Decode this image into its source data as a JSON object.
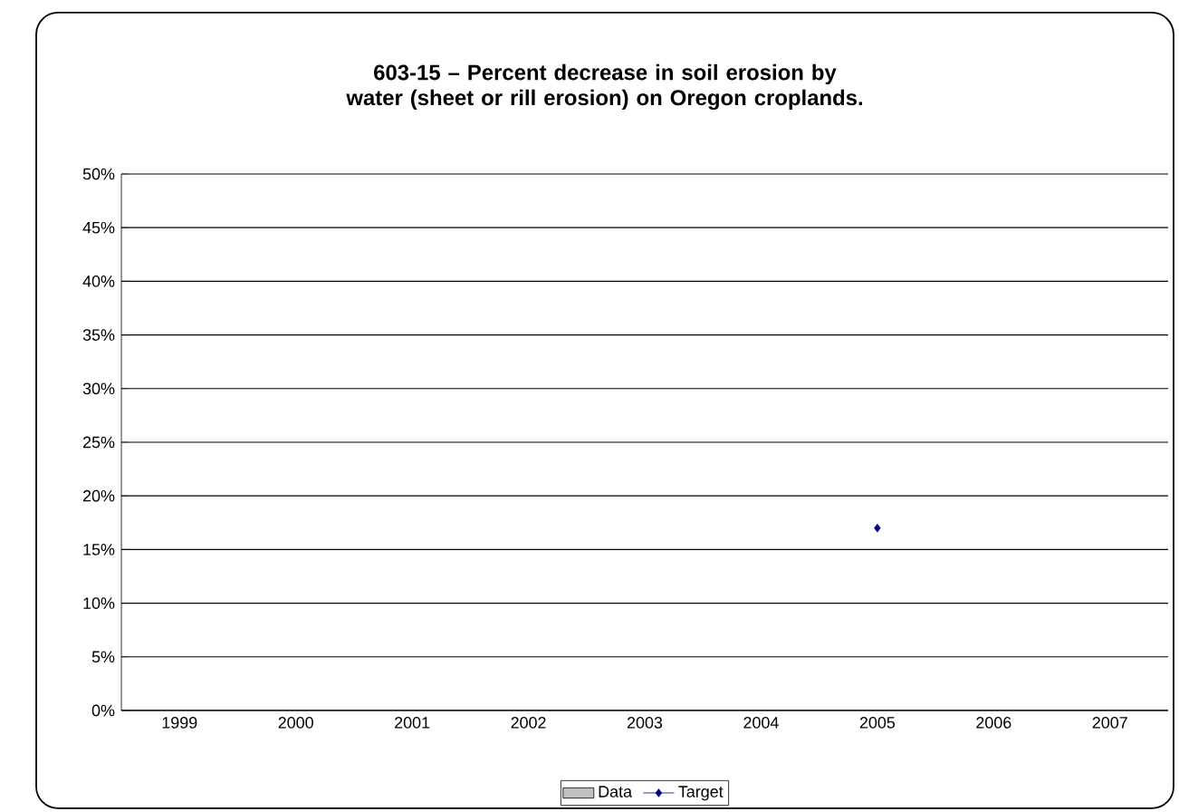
{
  "chart_data": {
    "type": "bar",
    "title": "603-15 – Percent decrease in soil erosion by water (sheet or rill erosion) on Oregon croplands.",
    "categories": [
      "1999",
      "2000",
      "2001",
      "2002",
      "2003",
      "2004",
      "2005",
      "2006",
      "2007"
    ],
    "series": [
      {
        "name": "Data",
        "color": "#c0c0c0",
        "values": [
          null,
          null,
          null,
          null,
          null,
          null,
          null,
          null,
          null
        ]
      },
      {
        "name": "Target",
        "type": "line",
        "color": "#000080",
        "marker": "diamond",
        "values": [
          null,
          null,
          null,
          null,
          null,
          null,
          17,
          null,
          null
        ]
      }
    ],
    "ylim": [
      0,
      50
    ],
    "yticks": [
      {
        "value": 0,
        "label": "0%"
      },
      {
        "value": 5,
        "label": "5%"
      },
      {
        "value": 10,
        "label": "10%"
      },
      {
        "value": 15,
        "label": "15%"
      },
      {
        "value": 20,
        "label": "20%"
      },
      {
        "value": 25,
        "label": "25%"
      },
      {
        "value": 30,
        "label": "30%"
      },
      {
        "value": 35,
        "label": "35%"
      },
      {
        "value": 40,
        "label": "40%"
      },
      {
        "value": 45,
        "label": "45%"
      },
      {
        "value": 50,
        "label": "50%"
      }
    ],
    "grid": "y",
    "legend": "bottom"
  }
}
